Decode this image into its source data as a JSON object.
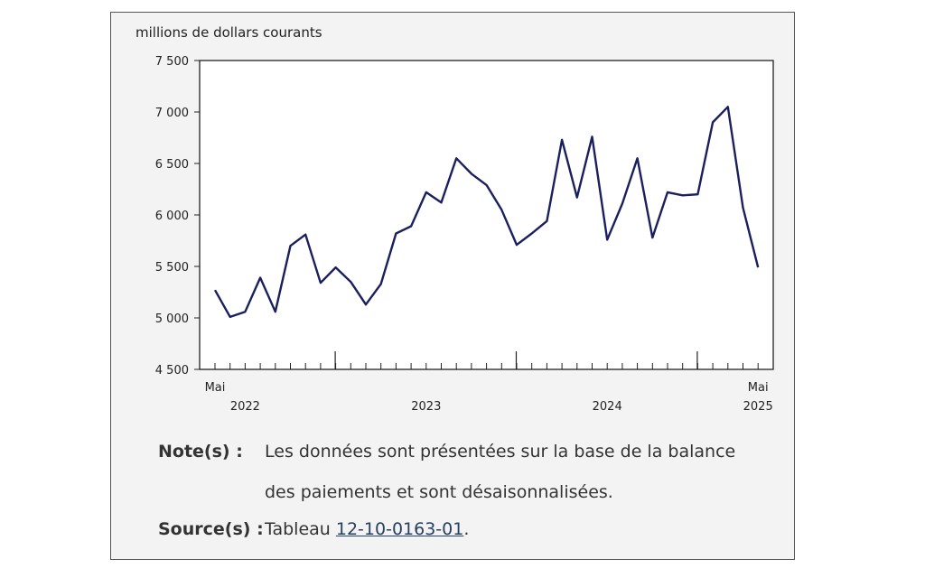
{
  "chart_data": {
    "type": "line",
    "ylabel": "millions de dollars courants",
    "ylim": [
      4500,
      7500
    ],
    "yticks": [
      4500,
      5000,
      5500,
      6000,
      6500,
      7000,
      7500
    ],
    "ytick_labels": [
      "4 500",
      "5 000",
      "5 500",
      "6 000",
      "6 500",
      "7 000",
      "7 500"
    ],
    "x_start_month": "Mai",
    "x_start_year": "2022",
    "x_end_month": "Mai",
    "x_end_year": "2025",
    "year_labels": [
      {
        "label": "2023",
        "month_index": 14
      },
      {
        "label": "2024",
        "month_index": 26
      }
    ],
    "series": [
      {
        "color": "#1a1f5e",
        "values": [
          5270,
          5010,
          5060,
          5390,
          5060,
          5700,
          5810,
          5340,
          5490,
          5350,
          5130,
          5330,
          5820,
          5890,
          6220,
          6120,
          6550,
          6400,
          6290,
          6050,
          5710,
          5820,
          5940,
          6730,
          6170,
          6760,
          5760,
          6110,
          6550,
          5780,
          6220,
          6190,
          6200,
          6900,
          7050,
          6070,
          5490
        ]
      }
    ]
  },
  "notes": {
    "note_label": "Note(s) :",
    "note_line1": "Les données sont présentées sur la base de la balance",
    "note_line2": "des paiements et sont désaisonnalisées.",
    "source_label": "Source(s) :",
    "source_prefix": "Tableau",
    "source_link": "12-10-0163-01",
    "source_suffix": "."
  }
}
